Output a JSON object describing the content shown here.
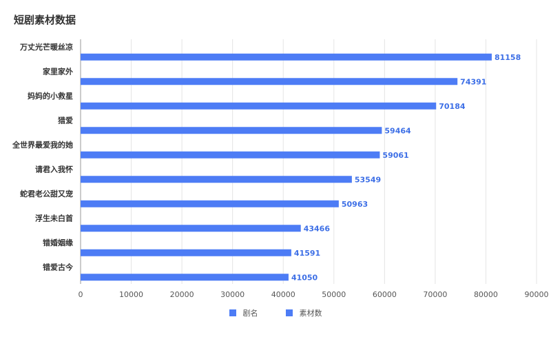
{
  "chart_data": {
    "type": "bar",
    "orientation": "horizontal",
    "title": "短剧素材数据",
    "categories": [
      "万丈光芒暖丝凉",
      "家里家外",
      "妈妈的小救星",
      "猎爱",
      "全世界最爱我的她",
      "请君入我怀",
      "蛇君老公甜又宠",
      "浮生未白首",
      "错婚姻缘",
      "错爱古今"
    ],
    "values": [
      81158,
      74391,
      70184,
      59464,
      59061,
      53549,
      50963,
      43466,
      41591,
      41050
    ],
    "xlim": [
      0,
      90000
    ],
    "xticks": [
      0,
      10000,
      20000,
      30000,
      40000,
      50000,
      60000,
      70000,
      80000,
      90000
    ],
    "grid": true,
    "legend_position": "bottom-center",
    "legend": [
      {
        "label": "剧名",
        "color": "#4d7cf5"
      },
      {
        "label": "素材数",
        "color": "#4d7cf5"
      }
    ],
    "bar_color": "#4d7cf5",
    "label_color": "#3d6fe6"
  }
}
